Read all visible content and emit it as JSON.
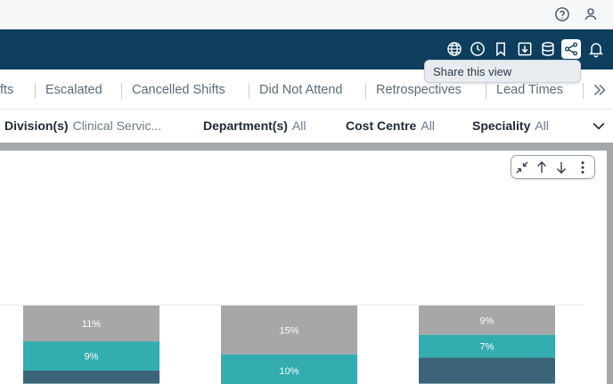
{
  "topbar": {
    "icons": [
      "help-icon",
      "user-icon"
    ]
  },
  "toolbar": {
    "icons": [
      "globe-icon",
      "clock-icon",
      "bookmark-icon",
      "download-icon",
      "database-icon",
      "share-icon",
      "bell-icon"
    ],
    "active": "share-icon"
  },
  "tooltip": {
    "text": "Share this view"
  },
  "tabs": {
    "items": [
      {
        "label": "fts"
      },
      {
        "label": "Escalated"
      },
      {
        "label": "Cancelled Shifts"
      },
      {
        "label": "Did Not Attend"
      },
      {
        "label": "Retrospectives"
      },
      {
        "label": "Lead Times"
      }
    ]
  },
  "filters": {
    "division": {
      "label": "Division(s)",
      "value": "Clinical Servic..."
    },
    "department": {
      "label": "Department(s)",
      "value": "All"
    },
    "cost_centre": {
      "label": "Cost Centre",
      "value": "All"
    },
    "speciality": {
      "label": "Speciality",
      "value": "All"
    }
  },
  "colors": {
    "navy": "#0d3e5e",
    "grey_segment": "#a7a7a7",
    "teal_segment": "#33adb0",
    "dark_segment": "#3b6479"
  },
  "chart_data": {
    "type": "bar",
    "stacked": true,
    "bars": [
      {
        "segments": [
          {
            "label": "11%",
            "value": 11,
            "color": "#a7a7a7"
          },
          {
            "label": "9%",
            "value": 9,
            "color": "#33adb0"
          },
          {
            "label": "",
            "value": 4,
            "color": "#3b6479"
          }
        ]
      },
      {
        "segments": [
          {
            "label": "15%",
            "value": 15,
            "color": "#a7a7a7"
          },
          {
            "label": "10%",
            "value": 10,
            "color": "#33adb0"
          },
          {
            "label": "",
            "value": 1,
            "color": "#3b6479"
          }
        ]
      },
      {
        "segments": [
          {
            "label": "9%",
            "value": 9,
            "color": "#a7a7a7"
          },
          {
            "label": "7%",
            "value": 7,
            "color": "#33adb0"
          },
          {
            "label": "",
            "value": 8,
            "color": "#3b6479"
          }
        ]
      }
    ]
  }
}
